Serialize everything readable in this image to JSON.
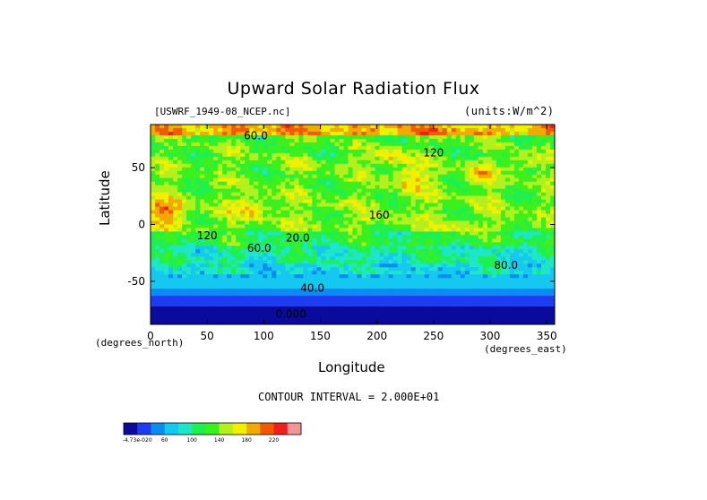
{
  "chart_data": {
    "type": "heatmap",
    "title": "Upward Solar Radiation Flux",
    "source_label": "[USWRF_1949-08_NCEP.nc]",
    "units_label": "(units:W/m^2)",
    "xlabel": "Longitude",
    "ylabel": "Latitude",
    "x_units": "(degrees_east)",
    "y_units": "(degrees_north)",
    "xlim": [
      0,
      357
    ],
    "ylim": [
      -88,
      88
    ],
    "x_ticks": [
      0,
      50,
      100,
      150,
      200,
      250,
      300,
      350
    ],
    "y_ticks": [
      -50,
      0,
      50
    ],
    "contour_interval_text": "CONTOUR INTERVAL = 2.000E+01",
    "contour_labels": [
      {
        "text": "60.0",
        "lon": 93,
        "lat": 75
      },
      {
        "text": "120",
        "lon": 250,
        "lat": 60
      },
      {
        "text": "160",
        "lon": 202,
        "lat": 5
      },
      {
        "text": "120",
        "lon": 50,
        "lat": -13
      },
      {
        "text": "20.0",
        "lon": 130,
        "lat": -15
      },
      {
        "text": "60.0",
        "lon": 96,
        "lat": -24
      },
      {
        "text": "80.0",
        "lon": 314,
        "lat": -39
      },
      {
        "text": "40.0",
        "lon": 143,
        "lat": -59
      },
      {
        "text": "0.000",
        "lon": 124,
        "lat": -82
      }
    ],
    "levels": [
      -4.73e-20,
      20,
      40,
      60,
      80,
      100,
      120,
      140,
      160,
      180,
      200,
      220,
      240
    ],
    "colorbar": {
      "colors": [
        "#0a0a9c",
        "#1e3cf0",
        "#0a8cf0",
        "#14c8f0",
        "#1ee6c8",
        "#1ef050",
        "#3cf01e",
        "#b4f01e",
        "#f0f000",
        "#f0aa00",
        "#f05a00",
        "#f01e1e",
        "#f09696"
      ],
      "tick_labels": [
        "-4.73e-020",
        "60",
        "100",
        "140",
        "180",
        "220"
      ]
    },
    "grid": false,
    "legend": "bottom-left colorbar"
  }
}
